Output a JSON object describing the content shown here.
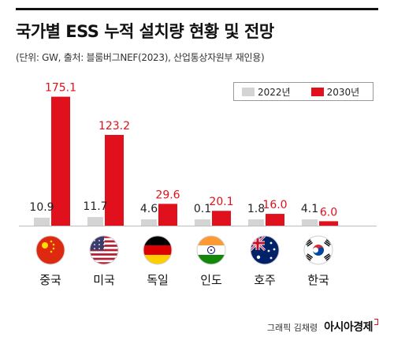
{
  "title": "국가별 ESS 누적 설치량 현황 및 전망",
  "subtitle": "(단위: GW, 출처: 블룸버그NEF(2023), 산업통상자원부 재인용)",
  "credit": "그래픽 김채령",
  "brand": "아시아경제",
  "colors": {
    "series_2022": "#d4d4d4",
    "series_2030": "#e0101c",
    "label_2022": "#222222",
    "label_2030": "#e0101c",
    "baseline": "#bdbdbd"
  },
  "chart_data": {
    "type": "bar",
    "categories": [
      "중국",
      "미국",
      "독일",
      "인도",
      "호주",
      "한국"
    ],
    "series": [
      {
        "name": "2022년",
        "values": [
          10.9,
          11.7,
          4.6,
          0.1,
          1.8,
          4.1
        ]
      },
      {
        "name": "2030년",
        "values": [
          175.1,
          123.2,
          29.6,
          20.1,
          16.0,
          6.0
        ]
      }
    ],
    "value_labels": {
      "2022년": [
        "10.9",
        "11.7",
        "4.6",
        "0.1",
        "1.8",
        "4.1"
      ],
      "2030년": [
        "175.1",
        "123.2",
        "29.6",
        "20.1",
        "16.0",
        "6.0"
      ]
    },
    "ylim": [
      0,
      180
    ],
    "legend_position": "top-right",
    "grid": false,
    "flags": [
      "china-flag-icon",
      "usa-flag-icon",
      "germany-flag-icon",
      "india-flag-icon",
      "australia-flag-icon",
      "korea-flag-icon"
    ]
  }
}
